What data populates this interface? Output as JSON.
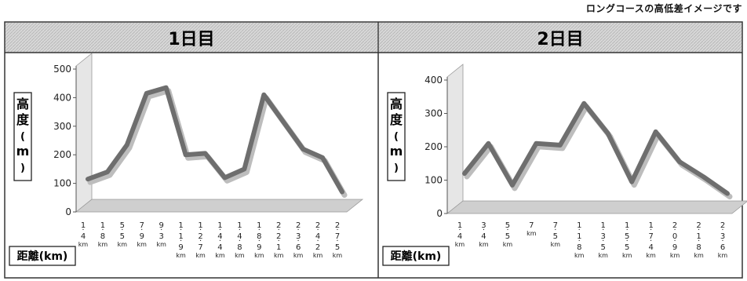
{
  "caption": "ロングコースの高低差イメージです",
  "colors": {
    "line": "#6e6e6e",
    "shadow": "#bdbdbd",
    "floor": "#cfcfcf",
    "wall": "#e6e6e6",
    "header": "#d8d8d8"
  },
  "chart_data": [
    {
      "type": "line",
      "title": "1日目",
      "ylabel_chars": [
        "高",
        "度",
        "(",
        "m",
        ")"
      ],
      "xlabel": "距離(km)",
      "ylim": [
        0,
        500
      ],
      "yticks": [
        0,
        100,
        200,
        300,
        400,
        500
      ],
      "categories": [
        "14",
        "18",
        "55",
        "79",
        "93",
        "119",
        "127",
        "144",
        "148",
        "189",
        "221",
        "236",
        "242",
        "275"
      ],
      "unit": "km",
      "values": [
        115,
        140,
        235,
        415,
        435,
        200,
        205,
        120,
        150,
        410,
        315,
        220,
        190,
        70
      ]
    },
    {
      "type": "line",
      "title": "2日目",
      "ylabel_chars": [
        "高",
        "度",
        "(",
        "m",
        ")"
      ],
      "xlabel": "距離(km)",
      "ylim": [
        0,
        400
      ],
      "yticks": [
        0,
        100,
        200,
        300,
        400
      ],
      "categories": [
        "14",
        "34",
        "55",
        "7",
        "75",
        "118",
        "135",
        "155",
        "174",
        "209",
        "218",
        "236"
      ],
      "unit": "km",
      "values": [
        120,
        210,
        85,
        210,
        205,
        330,
        240,
        95,
        245,
        155,
        110,
        60
      ]
    }
  ]
}
